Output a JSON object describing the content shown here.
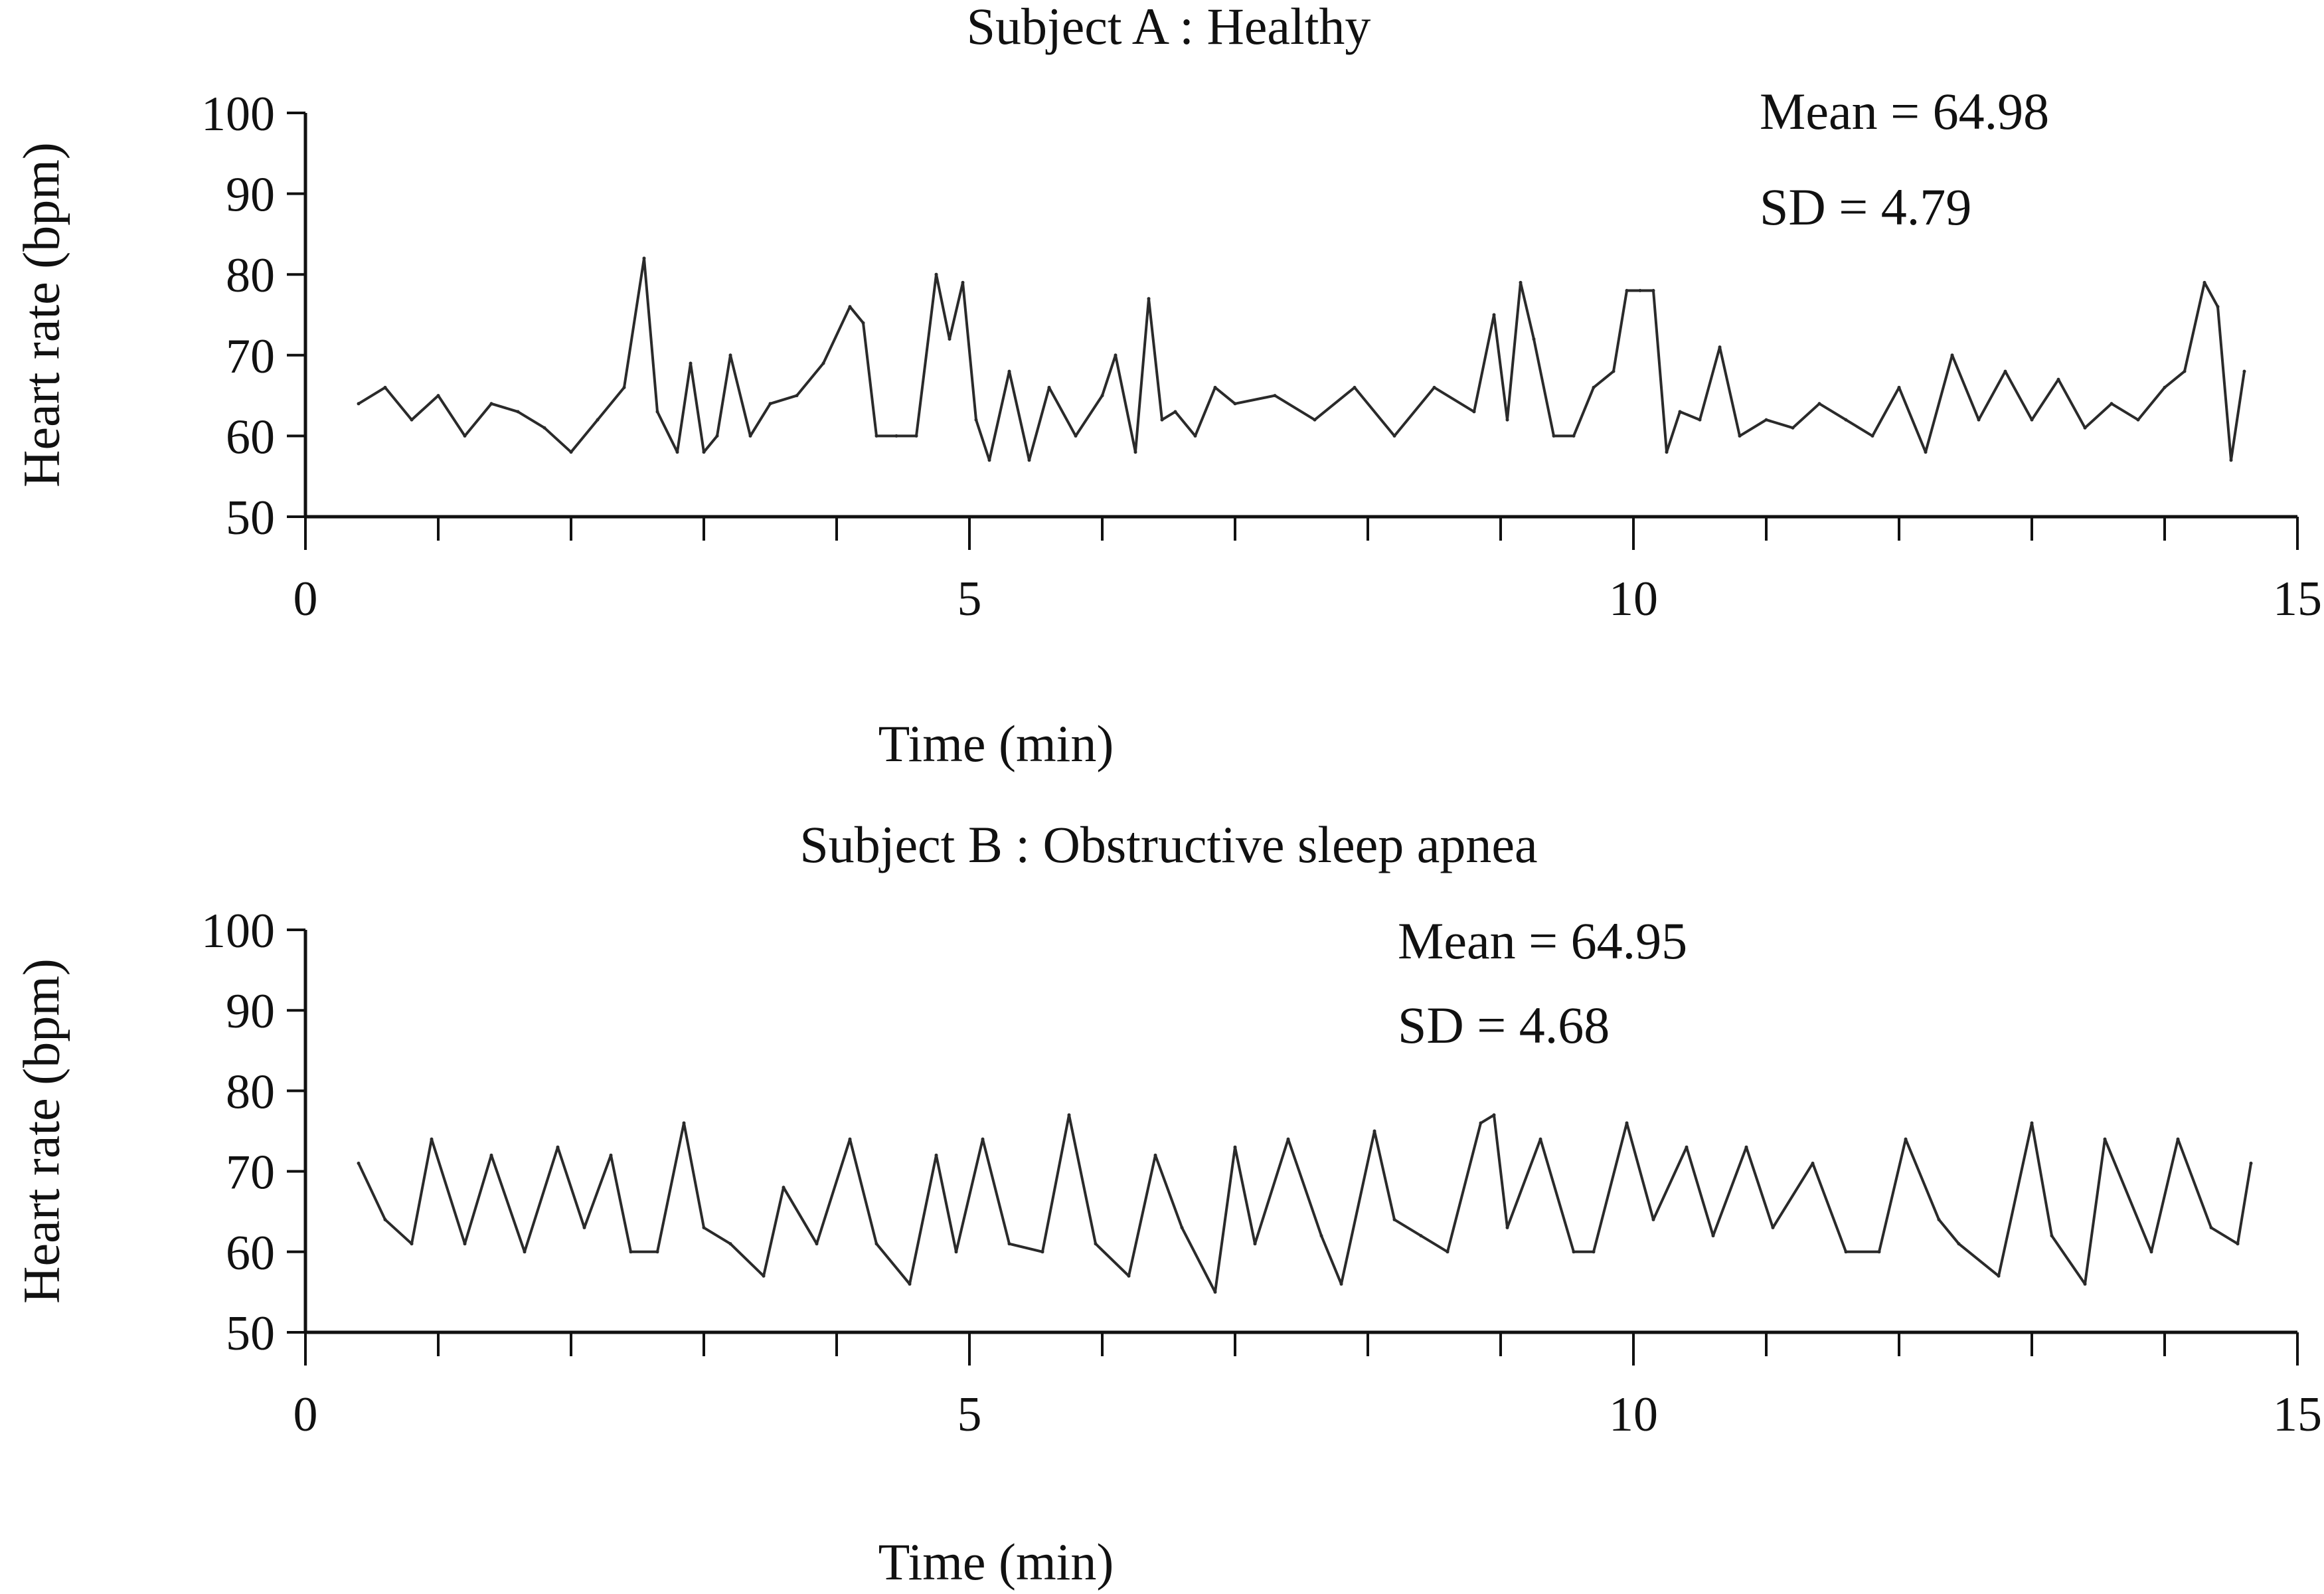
{
  "chart_data": [
    {
      "type": "line",
      "title": "Subject A : Healthy",
      "xlabel": "Time (min)",
      "ylabel": "Heart rate (bpm)",
      "xlim": [
        0,
        15
      ],
      "ylim": [
        50,
        100
      ],
      "xticks": [
        "0",
        "5",
        "10",
        "15"
      ],
      "yticks": [
        "50",
        "60",
        "70",
        "80",
        "90",
        "100"
      ],
      "grid": false,
      "annotations": {
        "mean": "Mean = 64.98",
        "sd": "SD = 4.79"
      },
      "series": [
        {
          "x": [
            0.4,
            0.6,
            0.8,
            1.0,
            1.2,
            1.4,
            1.6,
            1.8,
            2.0,
            2.2,
            2.4,
            2.55,
            2.65,
            2.8,
            2.9,
            3.0,
            3.1,
            3.2,
            3.35,
            3.5,
            3.7,
            3.9,
            4.1,
            4.2,
            4.3,
            4.45,
            4.6,
            4.75,
            4.85,
            4.95,
            5.05,
            5.15,
            5.3,
            5.45,
            5.6,
            5.8,
            6.0,
            6.1,
            6.25,
            6.35,
            6.45,
            6.55,
            6.7,
            6.85,
            7.0,
            7.3,
            7.6,
            7.9,
            8.2,
            8.5,
            8.8,
            8.95,
            9.05,
            9.15,
            9.25,
            9.4,
            9.55,
            9.7,
            9.85,
            9.95,
            10.05,
            10.15,
            10.25,
            10.35,
            10.5,
            10.65,
            10.8,
            11.0,
            11.2,
            11.4,
            11.6,
            11.8,
            12.0,
            12.2,
            12.4,
            12.6,
            12.8,
            13.0,
            13.2,
            13.4,
            13.6,
            13.8,
            14.0,
            14.15,
            14.3,
            14.4,
            14.5,
            14.6
          ],
          "y": [
            64,
            66,
            62,
            65,
            60,
            64,
            63,
            61,
            58,
            62,
            66,
            82,
            63,
            58,
            69,
            58,
            60,
            70,
            60,
            64,
            65,
            69,
            76,
            74,
            60,
            60,
            60,
            80,
            72,
            79,
            62,
            57,
            68,
            57,
            66,
            60,
            65,
            70,
            58,
            77,
            62,
            63,
            60,
            66,
            64,
            65,
            62,
            66,
            60,
            66,
            63,
            75,
            62,
            79,
            72,
            60,
            60,
            66,
            68,
            78,
            78,
            78,
            58,
            63,
            62,
            71,
            60,
            62,
            61,
            64,
            62,
            60,
            66,
            58,
            70,
            62,
            68,
            62,
            67,
            61,
            64,
            62,
            66,
            68,
            79,
            76,
            57,
            68
          ]
        }
      ]
    },
    {
      "type": "line",
      "title": "Subject B : Obstructive sleep apnea",
      "xlabel": "Time (min)",
      "ylabel": "Heart rate (bpm)",
      "xlim": [
        0,
        15
      ],
      "ylim": [
        50,
        100
      ],
      "xticks": [
        "0",
        "5",
        "10",
        "15"
      ],
      "yticks": [
        "50",
        "60",
        "70",
        "80",
        "90",
        "100"
      ],
      "grid": false,
      "annotations": {
        "mean": "Mean = 64.95",
        "sd": "SD = 4.68"
      },
      "series": [
        {
          "x": [
            0.4,
            0.6,
            0.8,
            0.95,
            1.2,
            1.4,
            1.65,
            1.9,
            2.1,
            2.3,
            2.45,
            2.65,
            2.85,
            3.0,
            3.2,
            3.45,
            3.6,
            3.85,
            4.1,
            4.3,
            4.55,
            4.75,
            4.9,
            5.1,
            5.3,
            5.55,
            5.75,
            5.95,
            6.2,
            6.4,
            6.6,
            6.85,
            7.0,
            7.15,
            7.4,
            7.65,
            7.8,
            8.05,
            8.2,
            8.4,
            8.6,
            8.85,
            8.95,
            9.05,
            9.3,
            9.55,
            9.7,
            9.95,
            10.15,
            10.4,
            10.6,
            10.85,
            11.05,
            11.35,
            11.6,
            11.85,
            12.05,
            12.3,
            12.45,
            12.75,
            13.0,
            13.15,
            13.4,
            13.55,
            13.9,
            14.1,
            14.35,
            14.55,
            14.65
          ],
          "y": [
            71,
            64,
            61,
            74,
            61,
            72,
            60,
            73,
            63,
            72,
            60,
            60,
            76,
            63,
            61,
            57,
            68,
            61,
            74,
            61,
            56,
            72,
            60,
            74,
            61,
            60,
            77,
            61,
            57,
            72,
            63,
            55,
            73,
            61,
            74,
            62,
            56,
            75,
            64,
            62,
            60,
            76,
            77,
            63,
            74,
            60,
            60,
            76,
            64,
            73,
            62,
            73,
            63,
            71,
            60,
            60,
            74,
            64,
            61,
            57,
            76,
            62,
            56,
            74,
            60,
            74,
            63,
            61,
            71
          ]
        }
      ]
    }
  ]
}
